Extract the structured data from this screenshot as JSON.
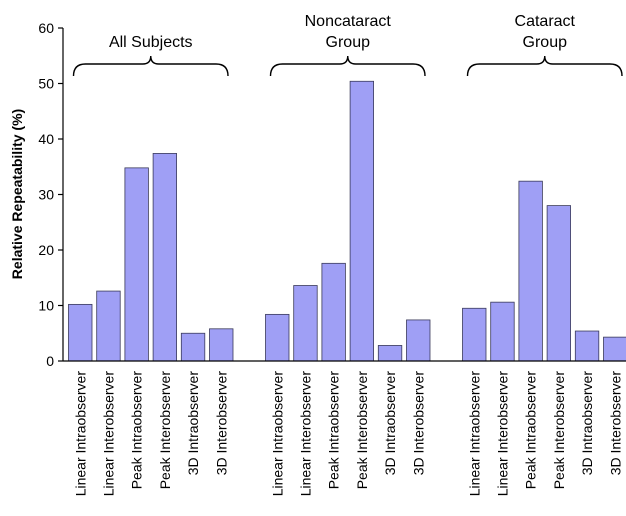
{
  "chart_data": {
    "type": "bar",
    "ylabel": "Relative Repeatability (%)",
    "ylim": [
      0,
      60
    ],
    "yticks": [
      0,
      10,
      20,
      30,
      40,
      50,
      60
    ],
    "grid": false,
    "legend": "none",
    "bar_color": "#9f9ff5",
    "groups": [
      {
        "label_lines": [
          "All Subjects"
        ],
        "categories": [
          "Linear Intraobserver",
          "Linear Interobserver",
          "Peak Intraobserver",
          "Peak Interobserver",
          "3D Intraobserver",
          "3D Interobserver"
        ],
        "values": [
          10.2,
          12.6,
          34.8,
          37.4,
          5.0,
          5.8
        ]
      },
      {
        "label_lines": [
          "Noncataract",
          "Group"
        ],
        "categories": [
          "Linear Intraobserver",
          "Linear Interobserver",
          "Peak Intraobserver",
          "Peak Interobserver",
          "3D Intraobserver",
          "3D Interobserver"
        ],
        "values": [
          8.4,
          13.6,
          17.6,
          50.4,
          2.8,
          7.4
        ]
      },
      {
        "label_lines": [
          "Cataract",
          "Group"
        ],
        "categories": [
          "Linear Intraobserver",
          "Linear Interobserver",
          "Peak Intraobserver",
          "Peak Interobserver",
          "3D Intraobserver",
          "3D Interobserver"
        ],
        "values": [
          9.5,
          10.6,
          32.4,
          28.0,
          5.4,
          4.3
        ]
      }
    ]
  }
}
